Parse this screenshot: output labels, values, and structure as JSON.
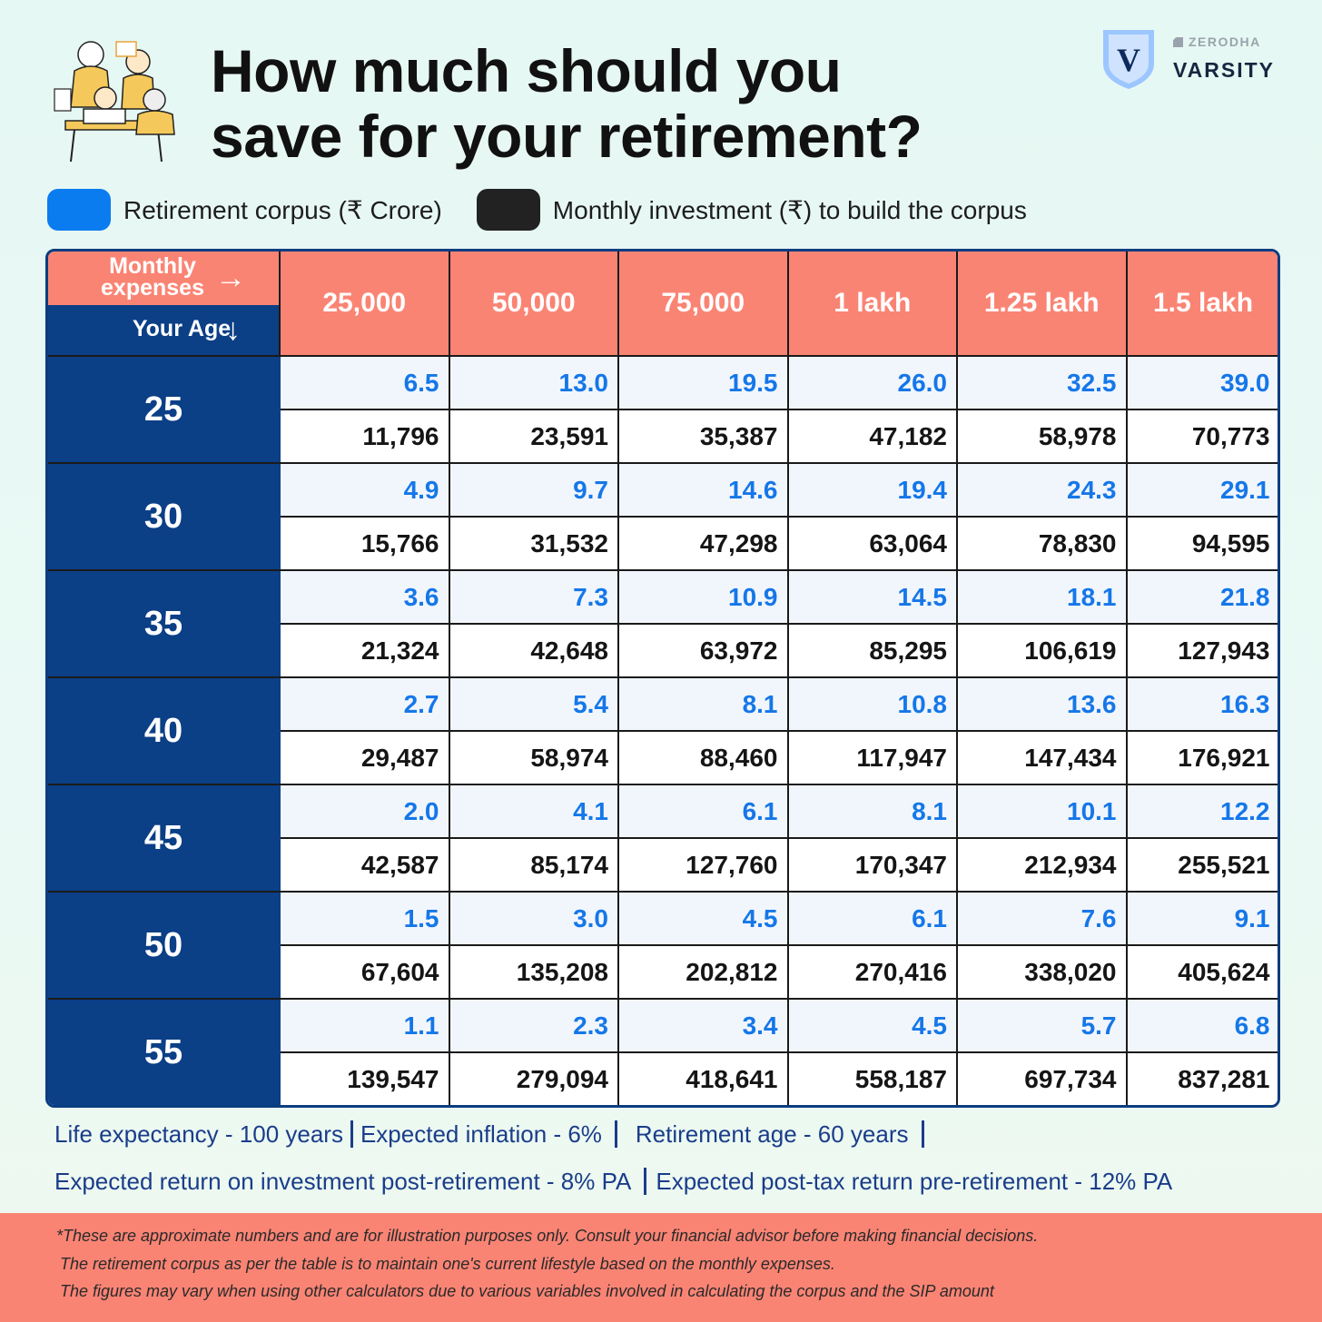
{
  "title": {
    "line1": "How much should you",
    "line2": "save for your retirement?"
  },
  "brand": {
    "shield_letter": "V",
    "small": "ZERODHA",
    "big": "VARSITY"
  },
  "legend": [
    {
      "label": "Retirement corpus (₹ Crore)",
      "color": "#0a7cf0"
    },
    {
      "label": "Monthly investment (₹) to build the corpus",
      "color": "#222222"
    }
  ],
  "table": {
    "corner_top": "Monthly expenses",
    "corner_bottom": "Your Age",
    "columns": [
      "25,000",
      "50,000",
      "75,000",
      "1 lakh",
      "1.25 lakh",
      "1.5 lakh"
    ],
    "rows": [
      {
        "age": "25",
        "corpus": [
          "6.5",
          "13.0",
          "19.5",
          "26.0",
          "32.5",
          "39.0"
        ],
        "sip": [
          "11,796",
          "23,591",
          "35,387",
          "47,182",
          "58,978",
          "70,773"
        ]
      },
      {
        "age": "30",
        "corpus": [
          "4.9",
          "9.7",
          "14.6",
          "19.4",
          "24.3",
          "29.1"
        ],
        "sip": [
          "15,766",
          "31,532",
          "47,298",
          "63,064",
          "78,830",
          "94,595"
        ]
      },
      {
        "age": "35",
        "corpus": [
          "3.6",
          "7.3",
          "10.9",
          "14.5",
          "18.1",
          "21.8"
        ],
        "sip": [
          "21,324",
          "42,648",
          "63,972",
          "85,295",
          "106,619",
          "127,943"
        ]
      },
      {
        "age": "40",
        "corpus": [
          "2.7",
          "5.4",
          "8.1",
          "10.8",
          "13.6",
          "16.3"
        ],
        "sip": [
          "29,487",
          "58,974",
          "88,460",
          "117,947",
          "147,434",
          "176,921"
        ]
      },
      {
        "age": "45",
        "corpus": [
          "2.0",
          "4.1",
          "6.1",
          "8.1",
          "10.1",
          "12.2"
        ],
        "sip": [
          "42,587",
          "85,174",
          "127,760",
          "170,347",
          "212,934",
          "255,521"
        ]
      },
      {
        "age": "50",
        "corpus": [
          "1.5",
          "3.0",
          "4.5",
          "6.1",
          "7.6",
          "9.1"
        ],
        "sip": [
          "67,604",
          "135,208",
          "202,812",
          "270,416",
          "338,020",
          "405,624"
        ]
      },
      {
        "age": "55",
        "corpus": [
          "1.1",
          "2.3",
          "3.4",
          "4.5",
          "5.7",
          "6.8"
        ],
        "sip": [
          "139,547",
          "279,094",
          "418,641",
          "558,187",
          "697,734",
          "837,281"
        ]
      }
    ]
  },
  "assumptions": {
    "line1": [
      "Life expectancy - 100 years",
      "Expected inflation - 6%",
      "Retirement age - 60 years"
    ],
    "line2": [
      "Expected return on investment post-retirement - 8% PA",
      "Expected post-tax return pre-retirement - 12% PA"
    ]
  },
  "footer": [
    "*These are approximate numbers and are for illustration purposes only. Consult your financial advisor before making financial decisions.",
    "The retirement corpus as per the table is to maintain one's current lifestyle based on the monthly expenses.",
    "The figures may vary when using other calculators due to various variables involved in calculating the corpus and the SIP amount"
  ]
}
